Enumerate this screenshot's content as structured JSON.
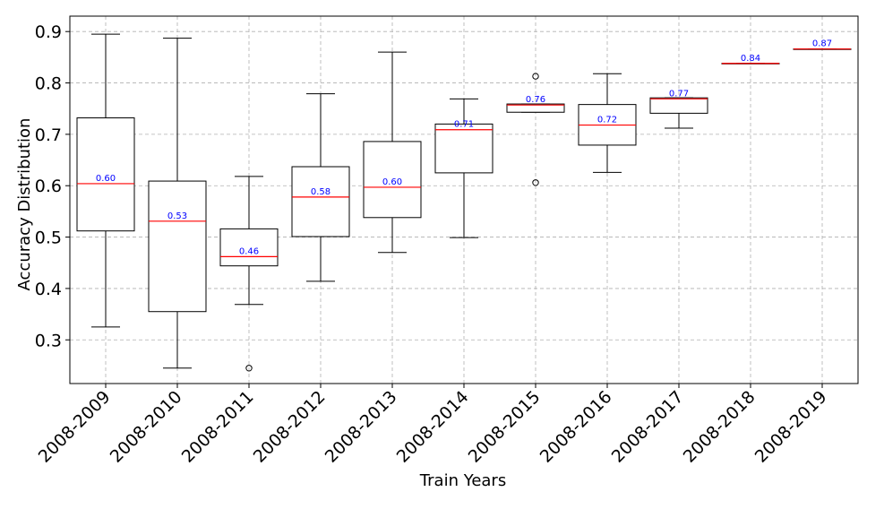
{
  "chart_data": {
    "type": "boxplot",
    "title": "",
    "xlabel": "Train Years",
    "ylabel": "Accuracy Distribution",
    "ylim": [
      0.215,
      0.93
    ],
    "yticks": [
      0.3,
      0.4,
      0.5,
      0.6,
      0.7,
      0.8,
      0.9
    ],
    "ytick_labels": [
      "0.3",
      "0.4",
      "0.5",
      "0.6",
      "0.7",
      "0.8",
      "0.9"
    ],
    "grid": true,
    "colors": {
      "box": "#000000",
      "median": "#ff0000",
      "median_label": "#0000ff",
      "grid": "#b0b0b0",
      "outlier": "#000000"
    },
    "categories": [
      "2008-2009",
      "2008-2010",
      "2008-2011",
      "2008-2012",
      "2008-2013",
      "2008-2014",
      "2008-2015",
      "2008-2016",
      "2008-2017",
      "2008-2018",
      "2008-2019"
    ],
    "boxes": [
      {
        "label": "2008-2009",
        "whislo": 0.325,
        "q1": 0.512,
        "med": 0.604,
        "q3": 0.732,
        "whishi": 0.895,
        "fliers": [],
        "med_label": "0.60"
      },
      {
        "label": "2008-2010",
        "whislo": 0.245,
        "q1": 0.355,
        "med": 0.531,
        "q3": 0.609,
        "whishi": 0.887,
        "fliers": [],
        "med_label": "0.53"
      },
      {
        "label": "2008-2011",
        "whislo": 0.369,
        "q1": 0.444,
        "med": 0.462,
        "q3": 0.516,
        "whishi": 0.618,
        "fliers": [
          0.245
        ],
        "med_label": "0.46"
      },
      {
        "label": "2008-2012",
        "whislo": 0.414,
        "q1": 0.501,
        "med": 0.578,
        "q3": 0.637,
        "whishi": 0.779,
        "fliers": [],
        "med_label": "0.58"
      },
      {
        "label": "2008-2013",
        "whislo": 0.47,
        "q1": 0.538,
        "med": 0.597,
        "q3": 0.686,
        "whishi": 0.86,
        "fliers": [],
        "med_label": "0.60"
      },
      {
        "label": "2008-2014",
        "whislo": 0.499,
        "q1": 0.625,
        "med": 0.709,
        "q3": 0.72,
        "whishi": 0.769,
        "fliers": [],
        "med_label": "0.71"
      },
      {
        "label": "2008-2015",
        "whislo": 0.743,
        "q1": 0.743,
        "med": 0.757,
        "q3": 0.759,
        "whishi": 0.759,
        "fliers": [
          0.606,
          0.813
        ],
        "med_label": "0.76"
      },
      {
        "label": "2008-2016",
        "whislo": 0.626,
        "q1": 0.679,
        "med": 0.718,
        "q3": 0.758,
        "whishi": 0.818,
        "fliers": [],
        "med_label": "0.72"
      },
      {
        "label": "2008-2017",
        "whislo": 0.712,
        "q1": 0.741,
        "med": 0.769,
        "q3": 0.771,
        "whishi": 0.771,
        "fliers": [],
        "med_label": "0.77"
      },
      {
        "label": "2008-2018",
        "whislo": 0.838,
        "q1": 0.838,
        "med": 0.838,
        "q3": 0.838,
        "whishi": 0.838,
        "fliers": [],
        "med_label": "0.84"
      },
      {
        "label": "2008-2019",
        "whislo": 0.866,
        "q1": 0.866,
        "med": 0.866,
        "q3": 0.866,
        "whishi": 0.866,
        "fliers": [],
        "med_label": "0.87"
      }
    ]
  }
}
